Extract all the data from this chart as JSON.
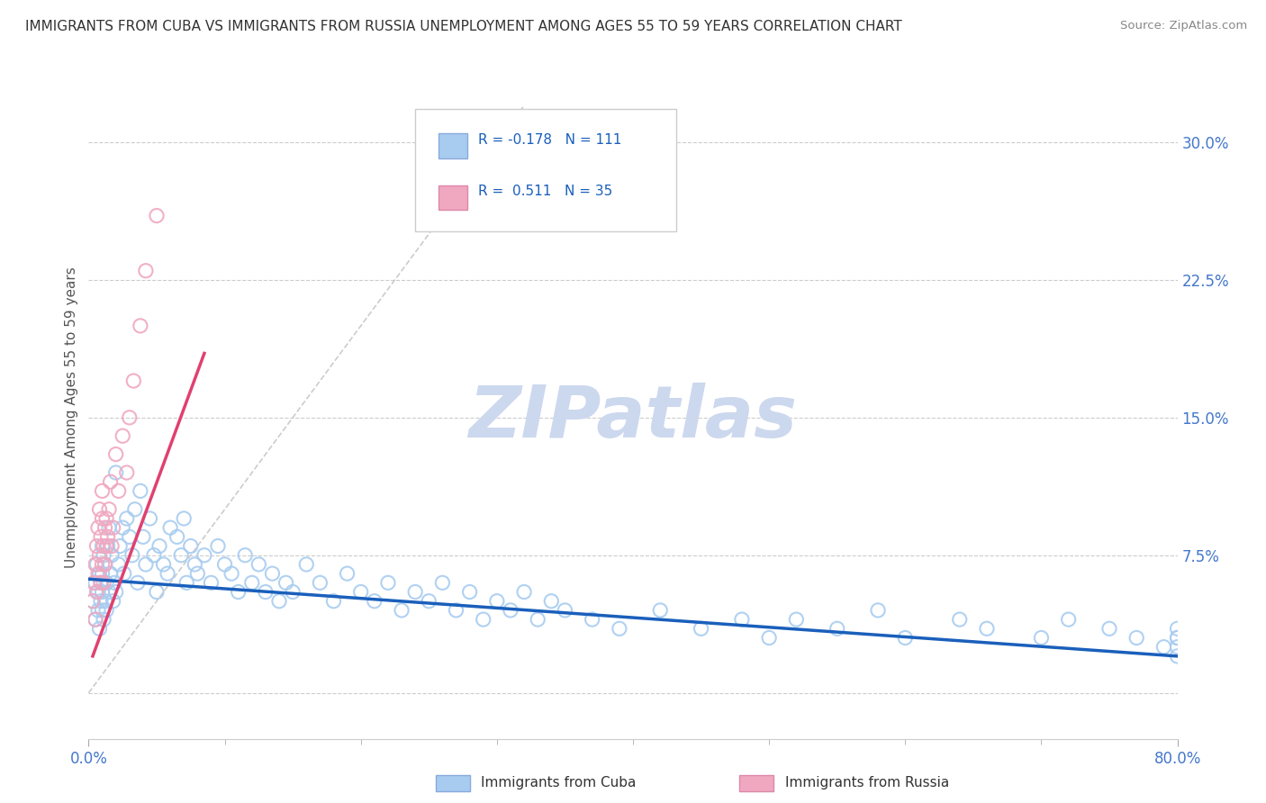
{
  "title": "IMMIGRANTS FROM CUBA VS IMMIGRANTS FROM RUSSIA UNEMPLOYMENT AMONG AGES 55 TO 59 YEARS CORRELATION CHART",
  "source": "Source: ZipAtlas.com",
  "ylabel": "Unemployment Among Ages 55 to 59 years",
  "legend_label_cuba": "Immigrants from Cuba",
  "legend_label_russia": "Immigrants from Russia",
  "r_cuba": -0.178,
  "n_cuba": 111,
  "r_russia": 0.511,
  "n_russia": 35,
  "color_cuba": "#a8ccf0",
  "color_russia": "#f0a8c0",
  "line_color_cuba": "#1a5fbb",
  "line_color_russia": "#e04070",
  "refline_color": "#cccccc",
  "xlim": [
    0.0,
    0.8
  ],
  "ylim": [
    -0.025,
    0.325
  ],
  "yticks": [
    0.0,
    0.075,
    0.15,
    0.225,
    0.3
  ],
  "ytick_labels": [
    "",
    "7.5%",
    "15.0%",
    "22.5%",
    "30.0%"
  ],
  "xtick_left": "0.0%",
  "xtick_right": "80.0%",
  "background_color": "#ffffff",
  "grid_color": "#cccccc",
  "title_color": "#333333",
  "axis_label_color": "#4477cc",
  "watermark": "ZIPatlas",
  "watermark_color": "#ccd8ee",
  "cuba_points_x": [
    0.003,
    0.005,
    0.005,
    0.006,
    0.007,
    0.007,
    0.008,
    0.008,
    0.009,
    0.009,
    0.01,
    0.01,
    0.01,
    0.01,
    0.011,
    0.011,
    0.012,
    0.012,
    0.013,
    0.013,
    0.014,
    0.015,
    0.015,
    0.016,
    0.017,
    0.018,
    0.019,
    0.02,
    0.02,
    0.022,
    0.023,
    0.025,
    0.026,
    0.028,
    0.03,
    0.032,
    0.034,
    0.036,
    0.038,
    0.04,
    0.042,
    0.045,
    0.048,
    0.05,
    0.052,
    0.055,
    0.058,
    0.06,
    0.065,
    0.068,
    0.07,
    0.072,
    0.075,
    0.078,
    0.08,
    0.085,
    0.09,
    0.095,
    0.1,
    0.105,
    0.11,
    0.115,
    0.12,
    0.125,
    0.13,
    0.135,
    0.14,
    0.145,
    0.15,
    0.16,
    0.17,
    0.18,
    0.19,
    0.2,
    0.21,
    0.22,
    0.23,
    0.24,
    0.25,
    0.26,
    0.27,
    0.28,
    0.29,
    0.3,
    0.31,
    0.32,
    0.33,
    0.34,
    0.35,
    0.37,
    0.39,
    0.42,
    0.45,
    0.48,
    0.5,
    0.52,
    0.55,
    0.58,
    0.6,
    0.64,
    0.66,
    0.7,
    0.72,
    0.75,
    0.77,
    0.79,
    0.8,
    0.8,
    0.8,
    0.8,
    0.8
  ],
  "cuba_points_y": [
    0.05,
    0.06,
    0.04,
    0.07,
    0.055,
    0.045,
    0.065,
    0.035,
    0.06,
    0.05,
    0.08,
    0.055,
    0.045,
    0.065,
    0.075,
    0.04,
    0.07,
    0.05,
    0.06,
    0.045,
    0.08,
    0.055,
    0.09,
    0.065,
    0.075,
    0.05,
    0.06,
    0.12,
    0.055,
    0.07,
    0.08,
    0.09,
    0.065,
    0.095,
    0.085,
    0.075,
    0.1,
    0.06,
    0.11,
    0.085,
    0.07,
    0.095,
    0.075,
    0.055,
    0.08,
    0.07,
    0.065,
    0.09,
    0.085,
    0.075,
    0.095,
    0.06,
    0.08,
    0.07,
    0.065,
    0.075,
    0.06,
    0.08,
    0.07,
    0.065,
    0.055,
    0.075,
    0.06,
    0.07,
    0.055,
    0.065,
    0.05,
    0.06,
    0.055,
    0.07,
    0.06,
    0.05,
    0.065,
    0.055,
    0.05,
    0.06,
    0.045,
    0.055,
    0.05,
    0.06,
    0.045,
    0.055,
    0.04,
    0.05,
    0.045,
    0.055,
    0.04,
    0.05,
    0.045,
    0.04,
    0.035,
    0.045,
    0.035,
    0.04,
    0.03,
    0.04,
    0.035,
    0.045,
    0.03,
    0.04,
    0.035,
    0.03,
    0.04,
    0.035,
    0.03,
    0.025,
    0.03,
    0.035,
    0.025,
    0.03,
    0.02
  ],
  "russia_points_x": [
    0.003,
    0.004,
    0.005,
    0.005,
    0.006,
    0.006,
    0.007,
    0.007,
    0.008,
    0.008,
    0.009,
    0.009,
    0.01,
    0.01,
    0.01,
    0.011,
    0.011,
    0.012,
    0.012,
    0.013,
    0.013,
    0.014,
    0.015,
    0.016,
    0.017,
    0.018,
    0.02,
    0.022,
    0.025,
    0.028,
    0.03,
    0.033,
    0.038,
    0.042,
    0.05
  ],
  "russia_points_y": [
    0.05,
    0.06,
    0.04,
    0.07,
    0.055,
    0.08,
    0.065,
    0.09,
    0.075,
    0.1,
    0.085,
    0.06,
    0.11,
    0.07,
    0.095,
    0.08,
    0.06,
    0.09,
    0.07,
    0.095,
    0.08,
    0.085,
    0.1,
    0.115,
    0.08,
    0.09,
    0.13,
    0.11,
    0.14,
    0.12,
    0.15,
    0.17,
    0.2,
    0.23,
    0.26
  ],
  "russia_line_x0": 0.003,
  "russia_line_x1": 0.085,
  "russia_line_y0": 0.02,
  "russia_line_y1": 0.185,
  "cuba_line_x0": 0.0,
  "cuba_line_x1": 0.8,
  "cuba_line_y0": 0.062,
  "cuba_line_y1": 0.02,
  "refline_x0": 0.0,
  "refline_x1": 0.32,
  "refline_y0": 0.0,
  "refline_y1": 0.32
}
